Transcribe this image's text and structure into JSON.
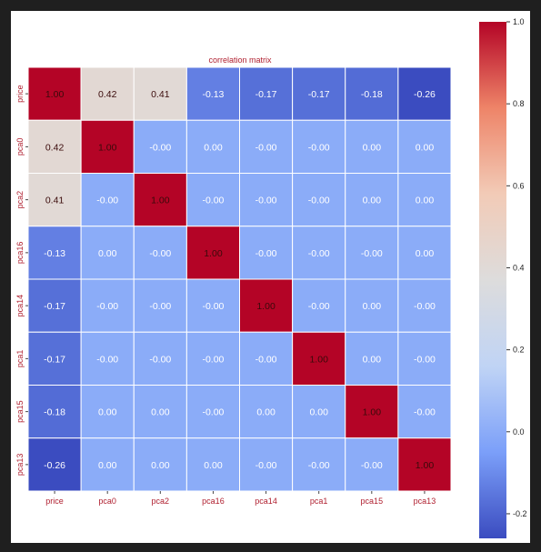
{
  "chart_data": {
    "type": "heatmap",
    "title": "correlation matrix",
    "x_labels": [
      "price",
      "pca0",
      "pca2",
      "pca16",
      "pca14",
      "pca1",
      "pca15",
      "pca13"
    ],
    "y_labels": [
      "price",
      "pca0",
      "pca2",
      "pca16",
      "pca14",
      "pca1",
      "pca15",
      "pca13"
    ],
    "values": [
      [
        1.0,
        0.42,
        0.41,
        -0.13,
        -0.17,
        -0.17,
        -0.18,
        -0.26
      ],
      [
        0.42,
        1.0,
        -0.0,
        0.0,
        -0.0,
        -0.0,
        0.0,
        0.0
      ],
      [
        0.41,
        -0.0,
        1.0,
        -0.0,
        -0.0,
        -0.0,
        0.0,
        0.0
      ],
      [
        -0.13,
        0.0,
        -0.0,
        1.0,
        -0.0,
        -0.0,
        -0.0,
        0.0
      ],
      [
        -0.17,
        -0.0,
        -0.0,
        -0.0,
        1.0,
        -0.0,
        0.0,
        -0.0
      ],
      [
        -0.17,
        -0.0,
        -0.0,
        -0.0,
        -0.0,
        1.0,
        0.0,
        -0.0
      ],
      [
        -0.18,
        0.0,
        0.0,
        -0.0,
        0.0,
        0.0,
        1.0,
        -0.0
      ],
      [
        -0.26,
        0.0,
        0.0,
        0.0,
        -0.0,
        -0.0,
        -0.0,
        1.0
      ]
    ],
    "cell_text": [
      [
        "1.00",
        "0.42",
        "0.41",
        "-0.13",
        "-0.17",
        "-0.17",
        "-0.18",
        "-0.26"
      ],
      [
        "0.42",
        "1.00",
        "-0.00",
        "0.00",
        "-0.00",
        "-0.00",
        "0.00",
        "0.00"
      ],
      [
        "0.41",
        "-0.00",
        "1.00",
        "-0.00",
        "-0.00",
        "-0.00",
        "0.00",
        "0.00"
      ],
      [
        "-0.13",
        "0.00",
        "-0.00",
        "1.00",
        "-0.00",
        "-0.00",
        "-0.00",
        "0.00"
      ],
      [
        "-0.17",
        "-0.00",
        "-0.00",
        "-0.00",
        "1.00",
        "-0.00",
        "0.00",
        "-0.00"
      ],
      [
        "-0.17",
        "-0.00",
        "-0.00",
        "-0.00",
        "-0.00",
        "1.00",
        "0.00",
        "-0.00"
      ],
      [
        "-0.18",
        "0.00",
        "0.00",
        "-0.00",
        "0.00",
        "0.00",
        "1.00",
        "-0.00"
      ],
      [
        "-0.26",
        "0.00",
        "0.00",
        "0.00",
        "-0.00",
        "-0.00",
        "-0.00",
        "1.00"
      ]
    ],
    "colorbar": {
      "range": [
        -0.26,
        1.0
      ],
      "ticks": [
        -0.2,
        0.0,
        0.2,
        0.4,
        0.6,
        0.8,
        1.0
      ],
      "tick_labels": [
        "-0.2",
        "0.0",
        "0.2",
        "0.4",
        "0.6",
        "0.8",
        "1.0"
      ],
      "colormap": "coolwarm",
      "color_stops": [
        "#3b4cc0",
        "#7b9ff9",
        "#c0d4f5",
        "#dddcdc",
        "#f2cbb7",
        "#ee8468",
        "#b40426"
      ]
    },
    "colors": {
      "label_text": "#b02030",
      "cell_text_dark": "#3a0a0a",
      "cell_text_light": "#ffffff",
      "grid_line": "#ffffff"
    }
  }
}
